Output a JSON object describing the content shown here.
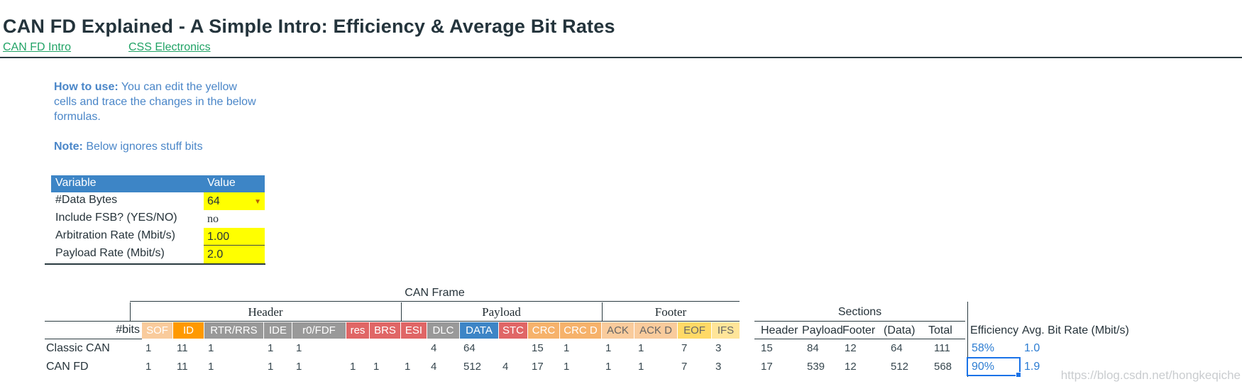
{
  "page": {
    "title": "CAN FD Explained - A Simple Intro: Efficiency & Average Bit Rates",
    "links": [
      {
        "label": "CAN FD Intro"
      },
      {
        "label": "CSS Electronics"
      }
    ]
  },
  "instructions": {
    "howto_label": "How to use:",
    "howto_text": "You can edit the yellow cells and trace the changes in the below formulas.",
    "note_label": "Note:",
    "note_text": "Below ignores stuff bits"
  },
  "variables": {
    "headers": [
      "Variable",
      "Value"
    ],
    "rows": [
      {
        "label": "#Data Bytes",
        "value": "64",
        "editable": true,
        "has_dropdown": true
      },
      {
        "label": "Include FSB? (YES/NO)",
        "value": "no",
        "editable": false
      },
      {
        "label": "Arbitration Rate (Mbit/s)",
        "value": "1.00",
        "editable": true
      },
      {
        "label": "Payload Rate (Mbit/s)",
        "value": "2.0",
        "editable": true
      }
    ]
  },
  "frame_table": {
    "title": "CAN Frame",
    "bits_label": "#bits",
    "groups": [
      {
        "label": "Header"
      },
      {
        "label": "Payload"
      },
      {
        "label": "Footer"
      }
    ],
    "columns": [
      {
        "label": "SOF",
        "bg": "#f9cb9c",
        "fg": "#ffffff"
      },
      {
        "label": "ID",
        "bg": "#ff9900",
        "fg": "#ffffff"
      },
      {
        "label": "RTR/RRS",
        "bg": "#999999",
        "fg": "#ffffff"
      },
      {
        "label": "IDE",
        "bg": "#999999",
        "fg": "#ffffff"
      },
      {
        "label": "r0/FDF",
        "bg": "#999999",
        "fg": "#ffffff"
      },
      {
        "label": "res",
        "bg": "#e06666",
        "fg": "#ffffff"
      },
      {
        "label": "BRS",
        "bg": "#e06666",
        "fg": "#ffffff"
      },
      {
        "label": "ESI",
        "bg": "#e06666",
        "fg": "#ffffff"
      },
      {
        "label": "DLC",
        "bg": "#999999",
        "fg": "#ffffff"
      },
      {
        "label": "DATA",
        "bg": "#3d85c6",
        "fg": "#ffffff"
      },
      {
        "label": "STC",
        "bg": "#e06666",
        "fg": "#ffffff"
      },
      {
        "label": "CRC",
        "bg": "#f6b26b",
        "fg": "#ffffff"
      },
      {
        "label": "CRC D",
        "bg": "#f6b26b",
        "fg": "#ffffff"
      },
      {
        "label": "ACK",
        "bg": "#f9cb9c",
        "fg": "#666666"
      },
      {
        "label": "ACK D",
        "bg": "#f9cb9c",
        "fg": "#666666"
      },
      {
        "label": "EOF",
        "bg": "#ffd966",
        "fg": "#666666"
      },
      {
        "label": "IFS",
        "bg": "#ffe599",
        "fg": "#666666"
      }
    ],
    "rows": [
      {
        "label": "Classic CAN",
        "bits": [
          "1",
          "11",
          "1",
          "1",
          "1",
          "",
          "",
          "",
          "4",
          "64",
          "",
          "15",
          "1",
          "1",
          "1",
          "7",
          "3"
        ]
      },
      {
        "label": "CAN FD",
        "bits": [
          "1",
          "11",
          "1",
          "1",
          "1",
          "1",
          "1",
          "1",
          "4",
          "512",
          "4",
          "17",
          "1",
          "1",
          "1",
          "7",
          "3"
        ]
      }
    ]
  },
  "sections_table": {
    "title": "Sections",
    "columns": [
      "Header",
      "Payload",
      "Footer",
      "(Data)",
      "Total"
    ],
    "rows": [
      [
        "15",
        "84",
        "12",
        "64",
        "111"
      ],
      [
        "17",
        "539",
        "12",
        "512",
        "568"
      ]
    ]
  },
  "results": {
    "efficiency_label": "Efficiency",
    "avg_label": "Avg. Bit Rate (Mbit/s)",
    "rows": [
      {
        "efficiency": "58%",
        "avg": "1.0"
      },
      {
        "efficiency": "90%",
        "avg": "1.9"
      }
    ]
  },
  "watermark": "https://blog.csdn.net/hongkeqiche",
  "colors": {
    "header_blue": "#3d85c6",
    "link_green": "#21a366",
    "note_blue": "#4a86c8",
    "value_blue": "#2d7dd2",
    "selection_blue": "#1a73e8",
    "edit_yellow": "#ffff00"
  }
}
